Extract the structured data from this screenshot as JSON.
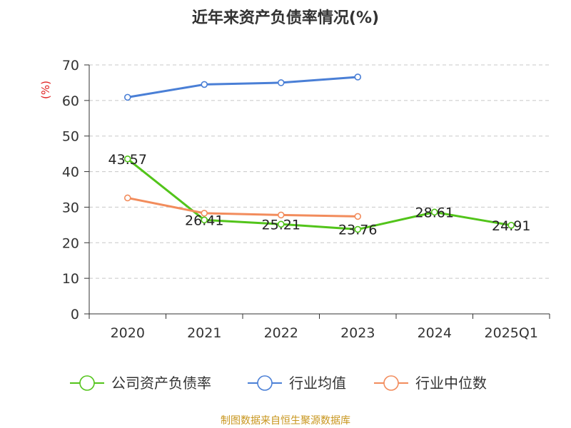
{
  "chart_data": {
    "type": "line",
    "title": "近年来资产负债率情况(%)",
    "ylabel": "(%)",
    "ylim": [
      0,
      70
    ],
    "yticks": [
      0,
      10,
      20,
      30,
      40,
      50,
      60,
      70
    ],
    "categories": [
      "2020",
      "2021",
      "2022",
      "2023",
      "2024",
      "2025Q1"
    ],
    "grid": true,
    "legend_position": "bottom",
    "series": [
      {
        "name": "公司资产负债率",
        "color": "#52c41a",
        "values": [
          43.57,
          26.41,
          25.21,
          23.76,
          28.61,
          24.91
        ],
        "labels": [
          "43.57",
          "26.41",
          "25.21",
          "23.76",
          "28.61",
          "24.91"
        ]
      },
      {
        "name": "行业均值",
        "color": "#4a7fd6",
        "values": [
          60.9,
          64.5,
          65.0,
          66.6,
          null,
          null
        ]
      },
      {
        "name": "行业中位数",
        "color": "#f28c5c",
        "values": [
          32.6,
          28.3,
          27.8,
          27.4,
          null,
          null
        ]
      }
    ],
    "source": "制图数据来自恒生聚源数据库"
  }
}
